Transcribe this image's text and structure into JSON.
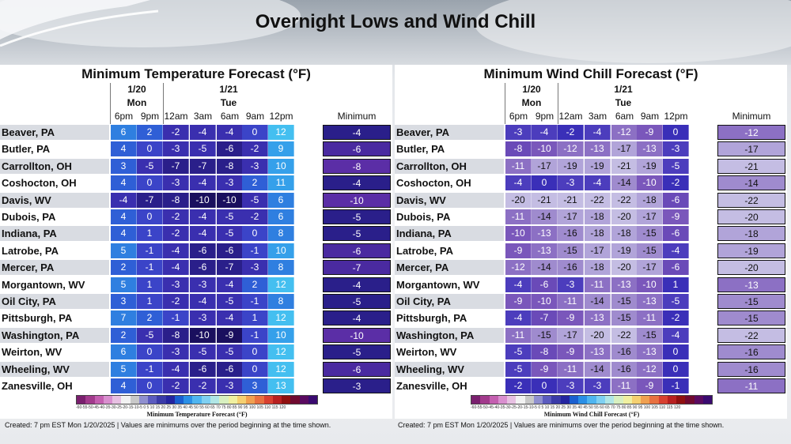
{
  "title": "Overnight Lows and Wind Chill",
  "cities": [
    "Beaver, PA",
    "Butler, PA",
    "Carrollton, OH",
    "Coshocton, OH",
    "Davis, WV",
    "Dubois, PA",
    "Indiana, PA",
    "Latrobe, PA",
    "Mercer, PA",
    "Morgantown, WV",
    "Oil City, PA",
    "Pittsburgh, PA",
    "Washington, PA",
    "Weirton, WV",
    "Wheeling, WV",
    "Zanesville, OH"
  ],
  "headers": {
    "date1": "1/20",
    "day1": "Mon",
    "date2": "1/21",
    "day2": "Tue",
    "times": [
      "6pm",
      "9pm",
      "12am",
      "3am",
      "6am",
      "9am",
      "12pm"
    ],
    "minimum": "Minimum"
  },
  "temp": {
    "title": "Minimum Temperature Forecast (°F)",
    "values": [
      [
        6,
        2,
        -2,
        -4,
        -4,
        0,
        12,
        -4
      ],
      [
        4,
        0,
        -3,
        -5,
        -6,
        -2,
        9,
        -6
      ],
      [
        3,
        -5,
        -7,
        -7,
        -8,
        -3,
        10,
        -8
      ],
      [
        4,
        0,
        -3,
        -4,
        -3,
        2,
        11,
        -4
      ],
      [
        -4,
        -7,
        -8,
        -10,
        -10,
        -5,
        6,
        -10
      ],
      [
        4,
        0,
        -2,
        -4,
        -5,
        -2,
        6,
        -5
      ],
      [
        4,
        1,
        -2,
        -4,
        -5,
        0,
        8,
        -5
      ],
      [
        5,
        -1,
        -4,
        -6,
        -6,
        -1,
        10,
        -6
      ],
      [
        2,
        -1,
        -4,
        -6,
        -7,
        -3,
        8,
        -7
      ],
      [
        5,
        1,
        -3,
        -3,
        -4,
        2,
        12,
        -4
      ],
      [
        3,
        1,
        -2,
        -4,
        -5,
        -1,
        8,
        -5
      ],
      [
        7,
        2,
        -1,
        -3,
        -4,
        1,
        12,
        -4
      ],
      [
        2,
        -5,
        -8,
        -10,
        -9,
        -1,
        10,
        -10
      ],
      [
        6,
        0,
        -3,
        -5,
        -5,
        0,
        12,
        -5
      ],
      [
        5,
        -1,
        -4,
        -6,
        -6,
        0,
        12,
        -6
      ],
      [
        4,
        0,
        -2,
        -2,
        -3,
        3,
        13,
        -3
      ]
    ],
    "legend_label": "Minimum Temperature Forecast (°F)",
    "legend_ticks": "-60-55-50-45-40-35-30-25-20-15-10-5 0 5 10 15 20 25 30 35 40 45 50 55 60 65 70 75 80 85 90 95 100 105 110 115 120"
  },
  "chill": {
    "title": "Minimum Wind Chill Forecast (°F)",
    "values": [
      [
        -3,
        -4,
        -2,
        -4,
        -12,
        -9,
        0,
        -12
      ],
      [
        -8,
        -10,
        -12,
        -13,
        -17,
        -13,
        -3,
        -17
      ],
      [
        -11,
        -17,
        -19,
        -19,
        -21,
        -19,
        -5,
        -21
      ],
      [
        -4,
        0,
        -3,
        -4,
        -14,
        -10,
        -2,
        -14
      ],
      [
        -20,
        -21,
        -21,
        -22,
        -22,
        -18,
        -6,
        -22
      ],
      [
        -11,
        -14,
        -17,
        -18,
        -20,
        -17,
        -9,
        -20
      ],
      [
        -10,
        -13,
        -16,
        -18,
        -18,
        -15,
        -6,
        -18
      ],
      [
        -9,
        -13,
        -15,
        -17,
        -19,
        -15,
        -4,
        -19
      ],
      [
        -12,
        -14,
        -16,
        -18,
        -20,
        -17,
        -6,
        -20
      ],
      [
        -4,
        -6,
        -3,
        -11,
        -13,
        -10,
        1,
        -13
      ],
      [
        -9,
        -10,
        -11,
        -14,
        -15,
        -13,
        -5,
        -15
      ],
      [
        -4,
        -7,
        -9,
        -13,
        -15,
        -11,
        -2,
        -15
      ],
      [
        -11,
        -15,
        -17,
        -20,
        -22,
        -15,
        -4,
        -22
      ],
      [
        -5,
        -8,
        -9,
        -13,
        -16,
        -13,
        0,
        -16
      ],
      [
        -5,
        -9,
        -11,
        -14,
        -16,
        -12,
        0,
        -16
      ],
      [
        -2,
        0,
        -3,
        -3,
        -11,
        -9,
        -1,
        -11
      ]
    ],
    "legend_label": "Minimum Wind Chill Forecast (°F)",
    "legend_ticks": "-60-55-50-45-40-35-30-25-20-15-10-5 0 5 10 15 20 25 30 35 40 45 50 55 60 65 70 75 80 85 90 95 100 105 110 115 120"
  },
  "footnote": "Created: 7 pm EST Mon 1/20/2025  |  Values are minimums over the period beginning at the time shown.",
  "colors": {
    "temp_scale": [
      "#1a0f5e",
      "#2a1f8a",
      "#3a2faf",
      "#3b44c8",
      "#2f5fd6",
      "#2f7fe0",
      "#35a0ea",
      "#44bff0"
    ],
    "chill_scale": [
      "#3b1670",
      "#5a2d98",
      "#7a4db8",
      "#9b80cc",
      "#b6a6dc",
      "#c7bde6",
      "#4a39b6",
      "#2731a8"
    ],
    "row_alt": "#d9dce2"
  }
}
